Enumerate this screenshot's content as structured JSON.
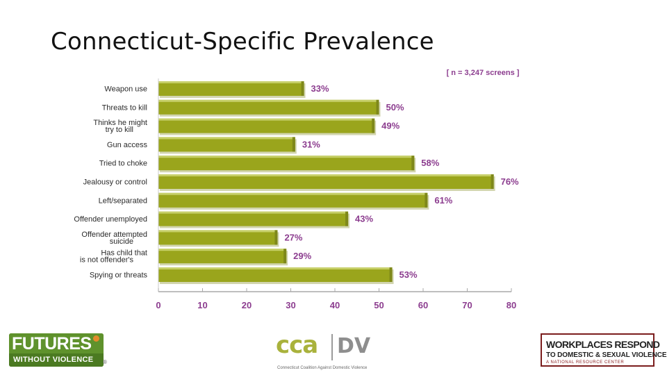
{
  "slide": {
    "title": "Connecticut-Specific Prevalence"
  },
  "chart_data": {
    "type": "bar",
    "orientation": "horizontal",
    "title": "Connecticut-Specific Prevalence",
    "note": "[ n = 3,247 screens ]",
    "categories": [
      [
        "Weapon use"
      ],
      [
        "Threats to kill"
      ],
      [
        "Thinks he might",
        "try to kill"
      ],
      [
        "Gun access"
      ],
      [
        "Tried to choke"
      ],
      [
        "Jealousy or control"
      ],
      [
        "Left/separated"
      ],
      [
        "Offender unemployed"
      ],
      [
        "Offender attempted",
        "suicide"
      ],
      [
        "Has child that",
        "is not offender's"
      ],
      [
        "Spying or threats"
      ]
    ],
    "values": [
      33,
      50,
      49,
      31,
      58,
      76,
      61,
      43,
      27,
      29,
      53
    ],
    "value_labels": [
      "33%",
      "50%",
      "49%",
      "31%",
      "58%",
      "76%",
      "61%",
      "43%",
      "27%",
      "29%",
      "53%"
    ],
    "xlim": [
      0,
      80
    ],
    "xticks": [
      "0",
      "10",
      "20",
      "30",
      "40",
      "50",
      "60",
      "70",
      "80"
    ],
    "xlabel": "",
    "ylabel": "",
    "grid": false,
    "colors": {
      "bar": "#9aa51c",
      "bar_edge": "#c6cf68",
      "bar_shadow": "#7e881a",
      "label": "#8c3d8f",
      "axis": "#a8a8a8"
    }
  },
  "logos": {
    "futures": {
      "line1": "FUTURES",
      "line2": "WITHOUT VIOLENCE",
      "mark": "®"
    },
    "cca": {
      "left": "cca",
      "right": "DV",
      "sub": "Connecticut Coalition Against Domestic Violence"
    },
    "workplaces": {
      "line1": "WORKPLACES RESPOND",
      "line2": "TO DOMESTIC & SEXUAL VIOLENCE",
      "line3": "A NATIONAL RESOURCE CENTER"
    }
  }
}
